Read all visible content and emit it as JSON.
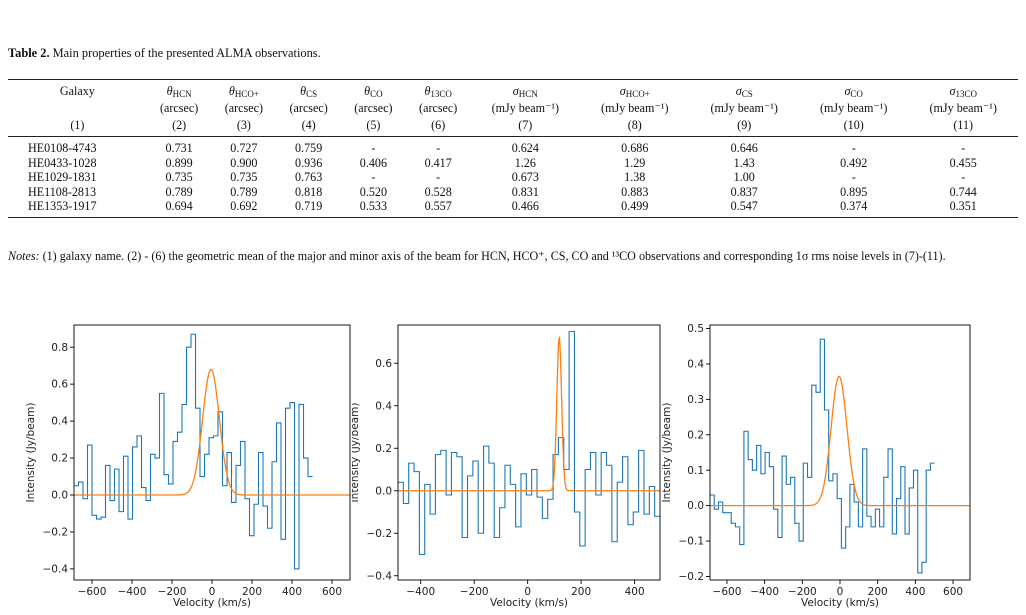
{
  "caption": {
    "label": "Table 2.",
    "text": " Main properties of the presented ALMA observations."
  },
  "table": {
    "headers": [
      {
        "name": "Galaxy",
        "unit": "",
        "num": "(1)"
      },
      {
        "sym": "θ",
        "sub": "HCN",
        "unit": "(arcsec)",
        "num": "(2)"
      },
      {
        "sym": "θ",
        "sub": "HCO+",
        "unit": "(arcsec)",
        "num": "(3)"
      },
      {
        "sym": "θ",
        "sub": "CS",
        "unit": "(arcsec)",
        "num": "(4)"
      },
      {
        "sym": "θ",
        "sub": "CO",
        "unit": "(arcsec)",
        "num": "(5)"
      },
      {
        "sym": "θ",
        "sub": "13CO",
        "unit": "(arcsec)",
        "num": "(6)"
      },
      {
        "sym": "σ",
        "sub": "HCN",
        "unit": "(mJy beam⁻¹)",
        "num": "(7)"
      },
      {
        "sym": "σ",
        "sub": "HCO+",
        "unit": "(mJy beam⁻¹)",
        "num": "(8)"
      },
      {
        "sym": "σ",
        "sub": "CS",
        "unit": "(mJy beam⁻¹)",
        "num": "(9)"
      },
      {
        "sym": "σ",
        "sub": "CO",
        "unit": "(mJy beam⁻¹)",
        "num": "(10)"
      },
      {
        "sym": "σ",
        "sub": "13CO",
        "unit": "(mJy beam⁻¹)",
        "num": "(11)"
      }
    ],
    "rows": [
      [
        "HE0108-4743",
        "0.731",
        "0.727",
        "0.759",
        "-",
        "-",
        "0.624",
        "0.686",
        "0.646",
        "-",
        "-"
      ],
      [
        "HE0433-1028",
        "0.899",
        "0.900",
        "0.936",
        "0.406",
        "0.417",
        "1.26",
        "1.29",
        "1.43",
        "0.492",
        "0.455"
      ],
      [
        "HE1029-1831",
        "0.735",
        "0.735",
        "0.763",
        "-",
        "-",
        "0.673",
        "1.38",
        "1.00",
        "-",
        "-"
      ],
      [
        "HE1108-2813",
        "0.789",
        "0.789",
        "0.818",
        "0.520",
        "0.528",
        "0.831",
        "0.883",
        "0.837",
        "0.895",
        "0.744"
      ],
      [
        "HE1353-1917",
        "0.694",
        "0.692",
        "0.719",
        "0.533",
        "0.557",
        "0.466",
        "0.499",
        "0.547",
        "0.374",
        "0.351"
      ]
    ]
  },
  "notes": {
    "label": "Notes:",
    "text": " (1) galaxy name. (2) - (6) the geometric mean of the major and minor axis of the beam for HCN, HCO⁺, CS, CO and ¹³CO observations and corresponding 1σ rms noise levels in (7)-(11)."
  },
  "colors": {
    "spectrum": "#1f77b4",
    "fit": "#ff7f0e",
    "axes": "#000000"
  },
  "chart_data": [
    {
      "type": "line",
      "xlabel": "Velocity (km/s)",
      "ylabel": "Intensity (Jy/beam)",
      "xlim": [
        -690,
        690
      ],
      "ylim": [
        -0.46,
        0.92
      ],
      "xticks": [
        -600,
        -400,
        -200,
        0,
        200,
        400,
        600
      ],
      "yticks": [
        -0.4,
        -0.2,
        0.0,
        0.2,
        0.4,
        0.6,
        0.8
      ],
      "step_x0": -690,
      "step_dx": 22.5,
      "spectrum": [
        0.05,
        0.07,
        -0.02,
        0.27,
        -0.11,
        -0.13,
        -0.12,
        0.16,
        -0.03,
        0.14,
        -0.09,
        0.21,
        -0.13,
        0.26,
        0.32,
        0.04,
        -0.03,
        0.22,
        0.2,
        0.55,
        0.11,
        0.06,
        0.29,
        0.34,
        0.49,
        0.8,
        0.87,
        0.47,
        0.1,
        0.22,
        0.31,
        0.32,
        0.45,
        0.05,
        0.23,
        -0.04,
        0.16,
        0.29,
        -0.02,
        -0.22,
        -0.05,
        0.23,
        -0.06,
        -0.18,
        0.18,
        0.39,
        -0.24,
        0.47,
        0.5,
        -0.4,
        0.49,
        0.2,
        0.1
      ],
      "fit": {
        "amplitude": 0.68,
        "center": -5,
        "sigma": 42
      }
    },
    {
      "type": "line",
      "xlabel": "Velocity (km/s)",
      "ylabel": "Intensity (Jy/beam)",
      "xlim": [
        -485,
        495
      ],
      "ylim": [
        -0.42,
        0.78
      ],
      "xticks": [
        -400,
        -200,
        0,
        200,
        400
      ],
      "yticks": [
        -0.4,
        -0.2,
        0.0,
        0.2,
        0.4,
        0.6
      ],
      "step_x0": -485,
      "step_dx": 20,
      "spectrum": [
        0.04,
        -0.06,
        0.13,
        0.09,
        -0.3,
        0.03,
        -0.11,
        0.17,
        0.19,
        -0.02,
        0.18,
        0.16,
        -0.22,
        0.07,
        0.14,
        -0.2,
        0.21,
        0.13,
        -0.22,
        -0.08,
        0.12,
        0.03,
        -0.17,
        0.08,
        -0.02,
        0.1,
        -0.03,
        -0.13,
        -0.04,
        0.17,
        0.25,
        0.1,
        0.75,
        -0.1,
        -0.26,
        0.1,
        0.18,
        -0.02,
        0.18,
        0.12,
        -0.24,
        0.04,
        0.16,
        -0.16,
        -0.1,
        0.19,
        -0.11,
        0.02,
        -0.12
      ],
      "fit": {
        "amplitude": 0.72,
        "center": 118,
        "sigma": 9
      }
    },
    {
      "type": "line",
      "xlabel": "Velocity (km/s)",
      "ylabel": "Intensity (Jy/beam)",
      "xlim": [
        -690,
        690
      ],
      "ylim": [
        -0.21,
        0.51
      ],
      "xticks": [
        -600,
        -400,
        -200,
        0,
        200,
        400,
        600
      ],
      "yticks": [
        -0.2,
        -0.1,
        0.0,
        0.1,
        0.2,
        0.3,
        0.4,
        0.5
      ],
      "step_x0": -690,
      "step_dx": 22.5,
      "spectrum": [
        0.03,
        -0.01,
        0.01,
        -0.02,
        -0.02,
        -0.05,
        -0.06,
        -0.11,
        0.21,
        0.13,
        0.1,
        0.17,
        0.09,
        0.15,
        0.11,
        -0.01,
        -0.09,
        0.14,
        0.06,
        0.08,
        -0.05,
        -0.1,
        0.12,
        0.08,
        0.34,
        0.32,
        0.47,
        0.27,
        0.07,
        0.09,
        0.02,
        -0.12,
        -0.06,
        0.06,
        0.01,
        -0.06,
        0.16,
        -0.03,
        -0.06,
        -0.01,
        -0.06,
        0.08,
        0.16,
        -0.08,
        0.02,
        0.11,
        -0.08,
        0.05,
        0.1,
        -0.19,
        -0.16,
        0.1,
        0.12
      ],
      "fit": {
        "amplitude": 0.365,
        "center": -5,
        "sigma": 42
      }
    }
  ]
}
